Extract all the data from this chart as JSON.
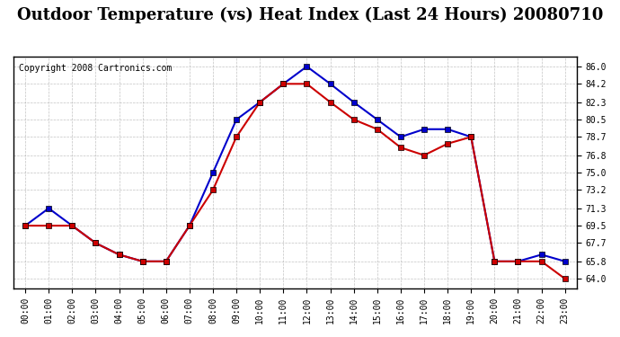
{
  "title": "Outdoor Temperature (vs) Heat Index (Last 24 Hours) 20080710",
  "copyright": "Copyright 2008 Cartronics.com",
  "hours": [
    "00:00",
    "01:00",
    "02:00",
    "03:00",
    "04:00",
    "05:00",
    "06:00",
    "07:00",
    "08:00",
    "09:00",
    "10:00",
    "11:00",
    "12:00",
    "13:00",
    "14:00",
    "15:00",
    "16:00",
    "17:00",
    "18:00",
    "19:00",
    "20:00",
    "21:00",
    "22:00",
    "23:00"
  ],
  "blue_data": [
    69.5,
    71.3,
    69.5,
    67.7,
    66.5,
    65.8,
    65.8,
    69.5,
    75.0,
    80.5,
    82.3,
    84.2,
    86.0,
    84.2,
    82.3,
    80.5,
    78.7,
    79.5,
    79.5,
    78.7,
    65.8,
    65.8,
    66.5,
    65.8
  ],
  "red_data": [
    69.5,
    69.5,
    69.5,
    67.7,
    66.5,
    65.8,
    65.8,
    69.5,
    73.2,
    78.7,
    82.3,
    84.2,
    84.2,
    82.3,
    80.5,
    79.5,
    77.6,
    76.8,
    78.0,
    78.7,
    65.8,
    65.8,
    65.8,
    64.0
  ],
  "ylim_min": 63.0,
  "ylim_max": 87.0,
  "yticks": [
    64.0,
    65.8,
    67.7,
    69.5,
    71.3,
    73.2,
    75.0,
    76.8,
    78.7,
    80.5,
    82.3,
    84.2,
    86.0
  ],
  "blue_color": "#0000CC",
  "red_color": "#CC0000",
  "bg_color": "#FFFFFF",
  "grid_color": "#AAAAAA",
  "title_fontsize": 13,
  "copyright_fontsize": 7
}
